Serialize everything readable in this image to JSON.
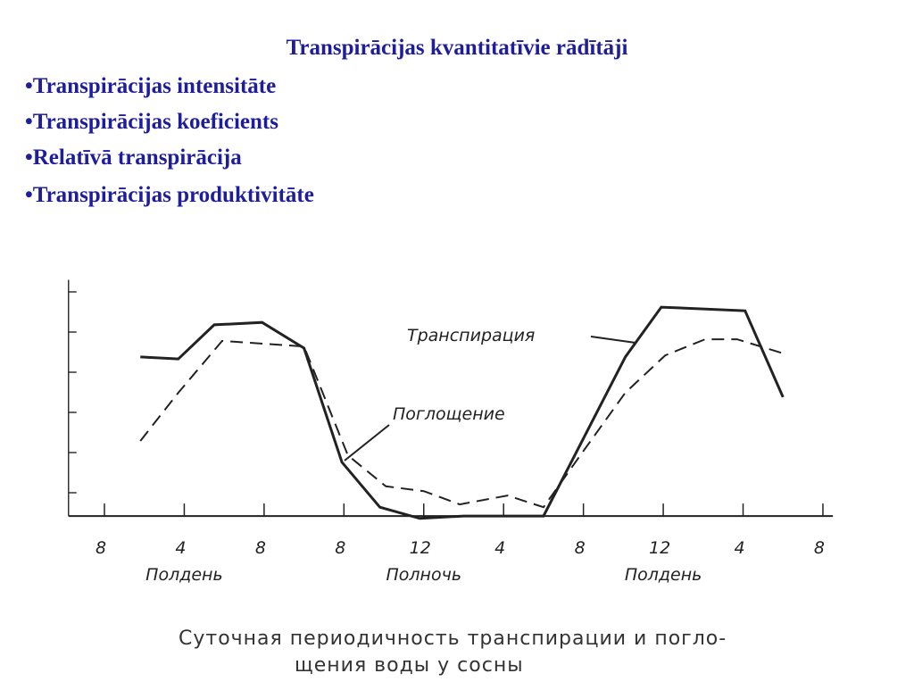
{
  "slide": {
    "title": "Transpirācijas kvantitatīvie rādītāji",
    "bullets": [
      "•Transpirācijas intensitāte",
      "•Transpirācijas koeficients",
      "•Relatīvā transpirācija",
      "•Transpirācijas produktivitāte"
    ]
  },
  "chart_data": {
    "type": "line",
    "caption": [
      "Суточная периодичность транспирации и погло-",
      "щения воды у сосны"
    ],
    "x_annotations": [
      "Полдень",
      "Полночь",
      "Полдень"
    ],
    "series": [
      {
        "name": "Транспирация",
        "color": "#222222",
        "dashed": false,
        "x": [
          1.8,
          3.7,
          5.5,
          7.9,
          10.0,
          11.9,
          13.8,
          15.8,
          18.0,
          22.0,
          26.1,
          27.9,
          32.1,
          34.0
        ],
        "values": [
          4.38,
          4.33,
          5.18,
          5.24,
          4.6,
          1.76,
          0.64,
          0.36,
          0.42,
          0.42,
          4.38,
          5.62,
          5.53,
          3.38
        ]
      },
      {
        "name": "Поглощение",
        "color": "#222222",
        "dashed": true,
        "x": [
          1.8,
          3.7,
          5.9,
          10.0,
          12.2,
          14.1,
          16.0,
          17.8,
          20.2,
          22.0,
          24.0,
          26.1,
          28.1,
          30.1,
          31.7,
          34.0
        ],
        "values": [
          2.29,
          3.49,
          4.78,
          4.64,
          1.93,
          1.16,
          1.04,
          0.71,
          0.93,
          0.64,
          2.04,
          3.49,
          4.42,
          4.82,
          4.82,
          4.47
        ]
      }
    ],
    "xlim": [
      -1.8,
      36.5
    ],
    "xticks": [
      {
        "value": 0,
        "label": "8"
      },
      4,
      8,
      {
        "value": 12,
        "label": "8"
      },
      {
        "value": 16,
        "label": "12"
      },
      {
        "value": 20,
        "label": "4"
      },
      {
        "value": 24,
        "label": "8"
      },
      {
        "value": 28,
        "label": "12"
      },
      {
        "value": 32,
        "label": "4"
      },
      {
        "value": 36,
        "label": "8"
      }
    ],
    "ylim": [
      0.42,
      6.3
    ],
    "yticks": [
      1,
      2,
      3,
      4,
      5,
      6
    ],
    "grid": false
  }
}
